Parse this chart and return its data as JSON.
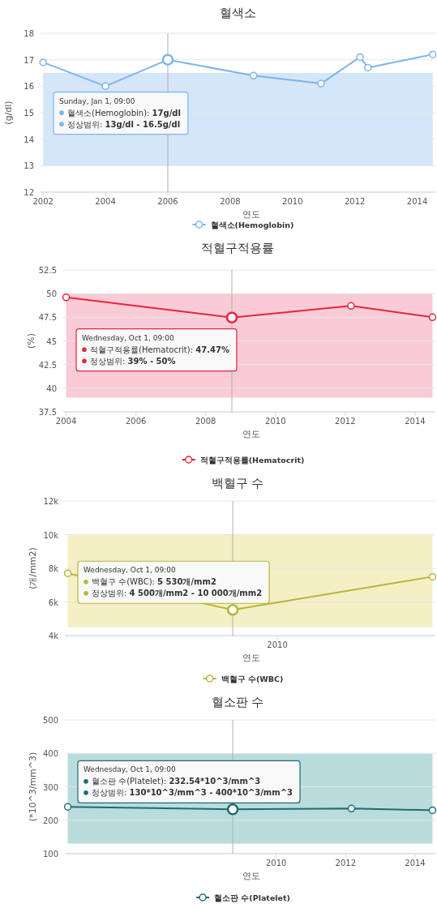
{
  "chart_data": [
    {
      "type": "line",
      "title": "혈색소",
      "xlabel": "연도",
      "ylabel": "(g/dl)",
      "marker": "circle",
      "grid": "y",
      "legend": "bottom",
      "x": [
        "2002-01-01",
        "2004-01-01",
        "2006-01-01",
        "2008-10-01",
        "2010-12-01",
        "2012-03-01",
        "2012-06-01",
        "2014-07-01"
      ],
      "series": [
        {
          "name": "혈색소(Hemoglobin)",
          "color": "#7cb5ec",
          "values": [
            16.9,
            16.0,
            17.0,
            16.4,
            16.1,
            17.1,
            16.7,
            17.2
          ]
        }
      ],
      "xlim": [
        "2001-12-01",
        "2014-08-01"
      ],
      "xticks": [
        "2002",
        "2004",
        "2006",
        "2008",
        "2010",
        "2012",
        "2014"
      ],
      "ylim": [
        12,
        18
      ],
      "yticks": [
        12,
        13,
        14,
        15,
        16,
        17,
        18
      ],
      "bands": [
        {
          "axis": "y",
          "from": 13,
          "to": 16.5,
          "color": "#d4e6f9"
        }
      ],
      "ref_lines": [
        {
          "axis": "x",
          "value": "2006-01-01",
          "color": "#b0b0b0"
        }
      ],
      "annotations": [
        "Sunday, Jan 1, 09:00",
        "혈색소(Hemoglobin): 17g/dl",
        "정상범위: 13g/dl - 16.5g/dl"
      ]
    },
    {
      "type": "line",
      "title": "적혈구적용률",
      "xlabel": "연도",
      "ylabel": "(%)",
      "marker": "circle",
      "grid": "y",
      "legend": "bottom",
      "x": [
        "2004-01-01",
        "2008-10-01",
        "2012-03-01",
        "2014-07-01"
      ],
      "series": [
        {
          "name": "적혈구적용률(Hematocrit)",
          "color": "#e8243c",
          "values": [
            49.6,
            47.47,
            48.7,
            47.5
          ]
        }
      ],
      "xlim": [
        "2003-12-01",
        "2014-08-01"
      ],
      "xticks": [
        "2004",
        "2006",
        "2008",
        "2010",
        "2012",
        "2014"
      ],
      "ylim": [
        37.5,
        52.5
      ],
      "yticks": [
        37.5,
        40,
        42.5,
        45,
        47.5,
        50,
        52.5
      ],
      "bands": [
        {
          "axis": "y",
          "from": 39,
          "to": 50,
          "color": "#f8cbd6"
        }
      ],
      "ref_lines": [
        {
          "axis": "x",
          "value": "2008-10-01",
          "color": "#b0b0b0"
        }
      ],
      "annotations": [
        "Wednesday, Oct 1, 09:00",
        "적혈구적용률(Hematocrit): 47.47%",
        "정상범위: 39% - 50%"
      ]
    },
    {
      "type": "line",
      "title": "백혈구 수",
      "xlabel": "연도",
      "ylabel": "(개/mm2)",
      "marker": "circle",
      "grid": "y",
      "legend": "bottom",
      "x": [
        "2004-01-01",
        "2008-10-01",
        "2014-07-01"
      ],
      "series": [
        {
          "name": "백혈구 수(WBC)",
          "color": "#b8b53a",
          "values": [
            7700,
            5530,
            7500
          ]
        }
      ],
      "xlim": [
        "2003-12-01",
        "2014-08-01"
      ],
      "ylim": [
        4000,
        12000
      ],
      "yticks": [
        {
          "value": 4000,
          "label": "4k"
        },
        {
          "value": 6000,
          "label": "6k"
        },
        {
          "value": 8000,
          "label": "8k"
        },
        {
          "value": 10000,
          "label": "10k"
        },
        {
          "value": 12000,
          "label": "12k"
        }
      ],
      "bands": [
        {
          "axis": "y",
          "from": 4500,
          "to": 10000,
          "color": "#f5efc6"
        }
      ],
      "ref_lines": [
        {
          "axis": "x",
          "value": "2008-10-01",
          "color": "#b0b0b0"
        }
      ],
      "annotations": [
        "Wednesday, Oct 1, 09:00",
        "백혈구 수(WBC): 5 530개/mm2",
        "정상범위: 4 500개/mm2 - 10 000개/mm2",
        "2010"
      ]
    },
    {
      "type": "line",
      "title": "혈소판 수",
      "xlabel": "연도",
      "ylabel": "(*10^3/mm^3)",
      "marker": "circle",
      "grid": "y",
      "legend": "bottom",
      "x": [
        "2004-01-01",
        "2008-10-01",
        "2012-03-01",
        "2014-07-01"
      ],
      "series": [
        {
          "name": "혈소판 수(Platelet)",
          "color": "#1f6b74",
          "values": [
            240,
            232.54,
            235,
            230
          ]
        }
      ],
      "xlim": [
        "2003-12-01",
        "2014-08-01"
      ],
      "xticks": [
        "2010",
        "2012",
        "2014"
      ],
      "ylim": [
        100,
        500
      ],
      "yticks": [
        100,
        200,
        300,
        400,
        500
      ],
      "bands": [
        {
          "axis": "y",
          "from": 130,
          "to": 400,
          "color": "#b9dcdc"
        }
      ],
      "ref_lines": [
        {
          "axis": "x",
          "value": "2008-10-01",
          "color": "#b0b0b0"
        }
      ],
      "annotations": [
        "Wednesday, Oct 1, 09:00",
        "혈소판 수(Platelet): 232.54*10^3/mm^3",
        "정상범위: 130*10^3/mm^3 - 400*10^3/mm^3"
      ]
    }
  ]
}
